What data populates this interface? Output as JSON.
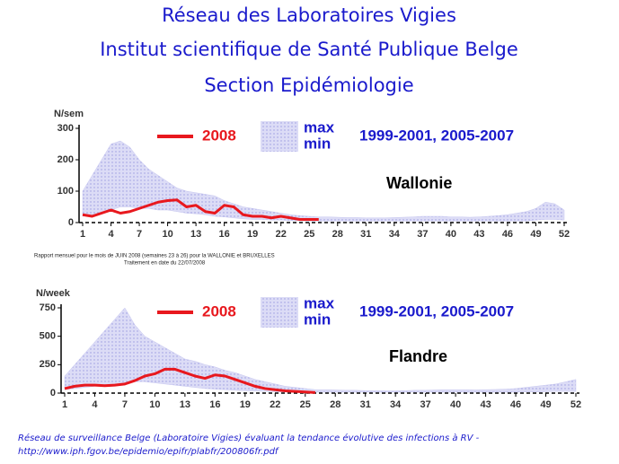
{
  "header": [
    "Réseau des Laboratoires Vigies",
    "Institut scientifique de Santé Publique Belge",
    "Section Epidémiologie"
  ],
  "note": [
    "Rapport mensuel pour le mois de JUIN 2008 (semaines 23 à 26) pour la WALLONIE et BRUXELLES",
    "Traitement en date du 22/07/2008"
  ],
  "footer": [
    "Réseau de surveillance Belge (Laboratoire Vigies) évaluant la tendance évolutive des infections à RV -",
    "http://www.iph.fgov.be/epidemio/epifr/plabfr/200806fr.pdf"
  ],
  "chart_data": [
    {
      "type": "line",
      "y_label": "N/sem",
      "region": "Wallonie",
      "x": [
        1,
        2,
        3,
        4,
        5,
        6,
        7,
        8,
        9,
        10,
        11,
        12,
        13,
        14,
        15,
        16,
        17,
        18,
        19,
        20,
        21,
        22,
        23,
        24,
        25,
        26,
        27,
        28,
        29,
        30,
        31,
        32,
        33,
        34,
        35,
        36,
        37,
        38,
        39,
        40,
        41,
        42,
        43,
        44,
        45,
        46,
        47,
        48,
        49,
        50,
        51,
        52
      ],
      "xlim": [
        1,
        52
      ],
      "xticks": [
        1,
        4,
        7,
        10,
        13,
        16,
        19,
        22,
        25,
        28,
        31,
        34,
        37,
        40,
        43,
        46,
        49,
        52
      ],
      "ylim": [
        0,
        300
      ],
      "yticks": [
        0,
        100,
        200,
        300
      ],
      "band": {
        "label": "1999-2001, 2005-2007",
        "color": "#c8c8f0",
        "max": {
          "name": "max",
          "values": [
            100,
            150,
            200,
            250,
            260,
            240,
            200,
            170,
            150,
            130,
            110,
            100,
            95,
            90,
            85,
            70,
            60,
            50,
            45,
            40,
            35,
            30,
            25,
            22,
            20,
            18,
            18,
            17,
            16,
            16,
            15,
            15,
            15,
            16,
            17,
            18,
            20,
            20,
            20,
            18,
            18,
            17,
            18,
            20,
            22,
            25,
            30,
            35,
            45,
            65,
            60,
            40
          ]
        },
        "min": {
          "name": "min",
          "values": [
            20,
            25,
            30,
            40,
            50,
            50,
            45,
            45,
            40,
            40,
            35,
            30,
            28,
            25,
            20,
            18,
            15,
            12,
            10,
            10,
            8,
            8,
            6,
            6,
            5,
            5,
            5,
            5,
            5,
            5,
            5,
            5,
            5,
            5,
            5,
            5,
            5,
            5,
            5,
            5,
            5,
            5,
            5,
            5,
            5,
            5,
            5,
            5,
            8,
            10,
            10,
            8
          ]
        }
      },
      "series": [
        {
          "name": "2008",
          "color": "#e8181e",
          "values": [
            25,
            20,
            30,
            40,
            30,
            35,
            45,
            55,
            65,
            70,
            72,
            50,
            55,
            35,
            30,
            55,
            50,
            25,
            20,
            20,
            15,
            20,
            15,
            10,
            10,
            10,
            null,
            null,
            null,
            null,
            null,
            null,
            null,
            null,
            null,
            null,
            null,
            null,
            null,
            null,
            null,
            null,
            null,
            null,
            null,
            null,
            null,
            null,
            null,
            null,
            null,
            null
          ]
        }
      ]
    },
    {
      "type": "line",
      "y_label": "N/week",
      "region": "Flandre",
      "x": [
        1,
        2,
        3,
        4,
        5,
        6,
        7,
        8,
        9,
        10,
        11,
        12,
        13,
        14,
        15,
        16,
        17,
        18,
        19,
        20,
        21,
        22,
        23,
        24,
        25,
        26,
        27,
        28,
        29,
        30,
        31,
        32,
        33,
        34,
        35,
        36,
        37,
        38,
        39,
        40,
        41,
        42,
        43,
        44,
        45,
        46,
        47,
        48,
        49,
        50,
        51,
        52
      ],
      "xlim": [
        1,
        52
      ],
      "xticks": [
        1,
        4,
        7,
        10,
        13,
        16,
        19,
        22,
        25,
        28,
        31,
        34,
        37,
        40,
        43,
        46,
        49,
        52
      ],
      "ylim": [
        0,
        750
      ],
      "yticks": [
        0,
        250,
        500,
        750
      ],
      "band": {
        "label": "1999-2001, 2005-2007",
        "color": "#c8c8f0",
        "max": {
          "name": "max",
          "values": [
            150,
            250,
            350,
            450,
            550,
            650,
            750,
            600,
            500,
            450,
            400,
            350,
            300,
            280,
            250,
            230,
            200,
            180,
            150,
            120,
            100,
            80,
            60,
            50,
            40,
            30,
            30,
            28,
            25,
            25,
            22,
            22,
            20,
            20,
            22,
            25,
            25,
            28,
            30,
            30,
            30,
            28,
            30,
            32,
            35,
            40,
            50,
            60,
            70,
            80,
            100,
            120
          ]
        },
        "min": {
          "name": "min",
          "values": [
            30,
            40,
            50,
            60,
            70,
            80,
            90,
            100,
            100,
            90,
            80,
            70,
            60,
            50,
            40,
            35,
            30,
            25,
            20,
            18,
            15,
            12,
            10,
            10,
            8,
            8,
            8,
            8,
            8,
            8,
            8,
            8,
            8,
            8,
            8,
            8,
            8,
            8,
            8,
            8,
            8,
            8,
            8,
            8,
            8,
            8,
            10,
            10,
            12,
            15,
            15,
            15
          ]
        }
      },
      "series": [
        {
          "name": "2008",
          "color": "#e8181e",
          "values": [
            40,
            60,
            70,
            70,
            65,
            70,
            80,
            110,
            150,
            170,
            210,
            210,
            180,
            150,
            130,
            160,
            150,
            120,
            90,
            60,
            40,
            30,
            20,
            15,
            10,
            5,
            null,
            null,
            null,
            null,
            null,
            null,
            null,
            null,
            null,
            null,
            null,
            null,
            null,
            null,
            null,
            null,
            null,
            null,
            null,
            null,
            null,
            null,
            null,
            null,
            null,
            null
          ]
        }
      ]
    }
  ]
}
